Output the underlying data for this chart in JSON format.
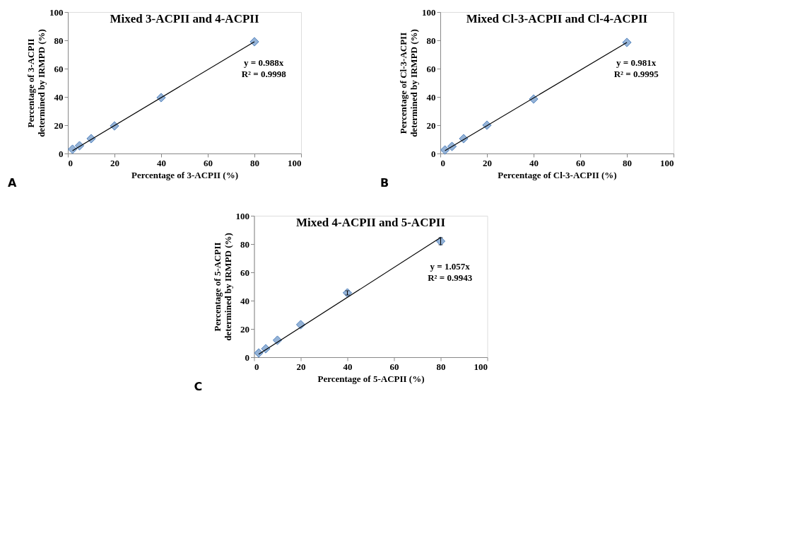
{
  "chart_data": [
    {
      "type": "scatter",
      "title": "Mixed 3-ACPII and 4-ACPII",
      "xlabel": "Percentage of 3-ACPII (%)",
      "ylabel": "Percentage of 3-ACPII\ndetermined by IRMPD (%)",
      "xlim": [
        0,
        100
      ],
      "ylim": [
        0,
        100
      ],
      "xticks": [
        0,
        20,
        40,
        60,
        80,
        100
      ],
      "yticks": [
        0,
        20,
        40,
        60,
        80,
        100
      ],
      "grid": false,
      "marker": "diamond",
      "annotations": [
        "y = 0.988x\nR² = 0.9998",
        "A"
      ],
      "series": [
        {
          "type": "scatter",
          "color": "#95b3d7",
          "x": [
            2,
            5,
            10,
            20,
            40,
            80
          ],
          "values": [
            3,
            5.5,
            10.5,
            19.5,
            39.5,
            79
          ]
        },
        {
          "type": "line",
          "color": "#000000",
          "marker": "none",
          "x": [
            2,
            80
          ],
          "values": [
            2,
            79
          ]
        }
      ]
    },
    {
      "type": "scatter",
      "title": "Mixed Cl-3-ACPII and Cl-4-ACPII",
      "xlabel": "Percentage of Cl-3-ACPII (%)",
      "ylabel": "Percentage of Cl-3-ACPII\ndetermined by IRMPD (%)",
      "xlim": [
        0,
        100
      ],
      "ylim": [
        0,
        100
      ],
      "xticks": [
        0,
        20,
        40,
        60,
        80,
        100
      ],
      "yticks": [
        0,
        20,
        40,
        60,
        80,
        100
      ],
      "grid": false,
      "marker": "diamond",
      "annotations": [
        "y = 0.981x\nR² = 0.9995",
        "B"
      ],
      "series": [
        {
          "type": "scatter",
          "color": "#95b3d7",
          "x": [
            2,
            5,
            10,
            20,
            40,
            80
          ],
          "values": [
            2.5,
            5,
            10.5,
            20,
            38.5,
            78.5
          ]
        },
        {
          "type": "line",
          "color": "#000000",
          "marker": "none",
          "x": [
            2,
            80
          ],
          "values": [
            2,
            78.5
          ]
        }
      ]
    },
    {
      "type": "scatter",
      "title": "Mixed 4-ACPII and 5-ACPII",
      "xlabel": "Percentage of 5-ACPII (%)",
      "ylabel": "Percentage of 5-ACPII\ndetermined by IRMPD (%)",
      "xlim": [
        0,
        100
      ],
      "ylim": [
        0,
        100
      ],
      "xticks": [
        0,
        20,
        40,
        60,
        80,
        100
      ],
      "yticks": [
        0,
        20,
        40,
        60,
        80,
        100
      ],
      "grid": false,
      "marker": "diamond",
      "annotations": [
        "y = 1.057x\nR² = 0.9943",
        "C"
      ],
      "series": [
        {
          "type": "scatter",
          "color": "#95b3d7",
          "x": [
            2,
            5,
            10,
            20,
            40,
            80
          ],
          "values": [
            3,
            6,
            12,
            23,
            45.5,
            82
          ],
          "errors": [
            null,
            null,
            null,
            null,
            1.5,
            2.5
          ]
        },
        {
          "type": "line",
          "color": "#000000",
          "marker": "none",
          "x": [
            2,
            80
          ],
          "values": [
            2.1,
            84.6
          ]
        }
      ]
    }
  ]
}
